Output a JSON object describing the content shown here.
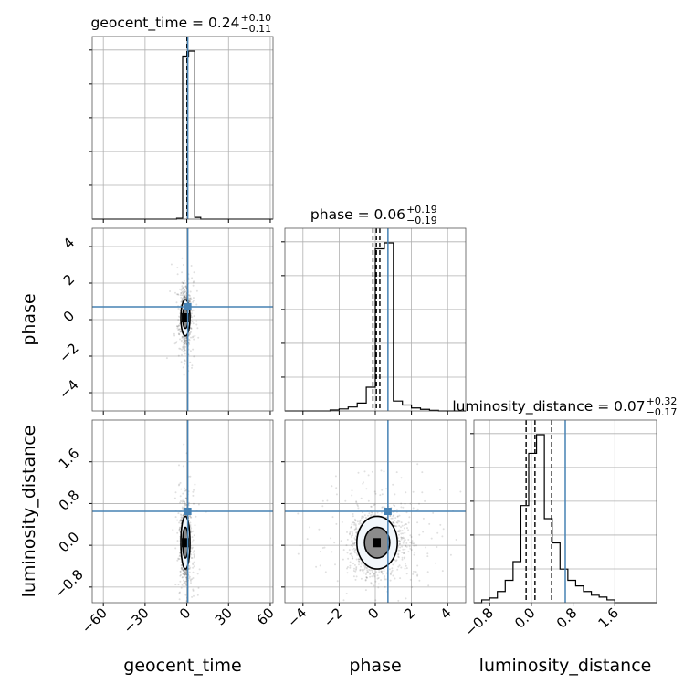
{
  "chart_data": {
    "type": "corner",
    "parameters": [
      {
        "name": "geocent_time",
        "label": "geocent_time",
        "xlim": [
          -68,
          62
        ],
        "ticks": [
          -60,
          -30,
          0,
          30,
          60
        ],
        "tick_labels": [
          "−60",
          "−30",
          "0",
          "30",
          "60"
        ],
        "truth": 0.7
      },
      {
        "name": "phase",
        "label": "phase",
        "xlim": [
          -5,
          5
        ],
        "ticks": [
          -4,
          -2,
          0,
          2,
          4
        ],
        "tick_labels": [
          "−4",
          "−2",
          "0",
          "2",
          "4"
        ],
        "truth": 0.7
      },
      {
        "name": "luminosity_distance",
        "label": "luminosity_distance",
        "xlim": [
          -1.1,
          2.4
        ],
        "ticks": [
          -0.8,
          0.0,
          0.8,
          1.6
        ],
        "tick_labels": [
          "−0.8",
          "0.0",
          "0.8",
          "1.6"
        ],
        "truth": 0.65
      }
    ],
    "titles": [
      {
        "param": "geocent_time",
        "text": "geocent_time = 0.24",
        "plus": "+0.10",
        "minus": "−0.11"
      },
      {
        "param": "phase",
        "text": "phase = 0.06",
        "plus": "+0.19",
        "minus": "−0.19"
      },
      {
        "param": "luminosity_distance",
        "text": "luminosity_distance = 0.07",
        "plus": "+0.32",
        "minus": "−0.17"
      }
    ],
    "quantiles": {
      "geocent_time": [
        0.13,
        0.24,
        0.34
      ],
      "phase": [
        -0.13,
        0.06,
        0.25
      ],
      "luminosity_distance": [
        -0.1,
        0.07,
        0.39
      ]
    },
    "histograms": {
      "geocent_time": {
        "bins": [
          -68,
          -63.7,
          -59.3,
          -55,
          -50.7,
          -46.3,
          -42,
          -37.7,
          -33.3,
          -29,
          -24.7,
          -20.3,
          -16,
          -11.7,
          -7.3,
          -3,
          1.3,
          5.7,
          10,
          14.3,
          18.7,
          23,
          27.3,
          31.7,
          36,
          40.3,
          44.7,
          49,
          53.3,
          57.7,
          62
        ],
        "counts": [
          0,
          0,
          0,
          0,
          0,
          0,
          0,
          0,
          0,
          0,
          0,
          0,
          0,
          0,
          0.005,
          0.97,
          1.0,
          0.01,
          0,
          0,
          0,
          0,
          0,
          0,
          0,
          0,
          0,
          0,
          0,
          0
        ]
      },
      "phase": {
        "bins": [
          -5,
          -4.5,
          -4,
          -3.5,
          -3,
          -2.5,
          -2,
          -1.5,
          -1,
          -0.5,
          0,
          0.5,
          1,
          1.5,
          2,
          2.5,
          3,
          3.5,
          4,
          4.5,
          5
        ],
        "counts": [
          0,
          0,
          0,
          0,
          0,
          0.005,
          0.01,
          0.02,
          0.04,
          0.12,
          0.82,
          0.85,
          0.05,
          0.03,
          0.015,
          0.008,
          0.003,
          0,
          0,
          0
        ]
      },
      "luminosity_distance": {
        "bins": [
          -1.1,
          -0.95,
          -0.8,
          -0.65,
          -0.5,
          -0.35,
          -0.2,
          -0.05,
          0.1,
          0.25,
          0.4,
          0.55,
          0.7,
          0.85,
          1.0,
          1.15,
          1.3,
          1.45,
          1.6,
          1.75,
          1.9,
          2.05,
          2.2,
          2.4
        ],
        "counts": [
          0,
          0.015,
          0.025,
          0.06,
          0.12,
          0.22,
          0.52,
          0.8,
          0.9,
          0.45,
          0.32,
          0.18,
          0.12,
          0.09,
          0.06,
          0.04,
          0.03,
          0.015,
          0.0,
          0,
          0,
          0,
          0
        ]
      }
    },
    "pairs": [
      {
        "x": "geocent_time",
        "y": "phase",
        "truth": [
          0.7,
          0.7
        ],
        "center": [
          -1,
          0.1
        ],
        "spread": [
          1.5,
          0.55
        ]
      },
      {
        "x": "geocent_time",
        "y": "luminosity_distance",
        "truth": [
          0.7,
          0.65
        ],
        "center": [
          -1,
          0.05
        ],
        "spread": [
          1.5,
          0.28
        ]
      },
      {
        "x": "phase",
        "y": "luminosity_distance",
        "truth": [
          0.7,
          0.65
        ],
        "center": [
          0.1,
          0.05
        ],
        "spread": [
          0.7,
          0.28
        ]
      }
    ],
    "axis_labels": {
      "x": [
        "geocent_time",
        "phase",
        "luminosity_distance"
      ],
      "y": [
        "phase",
        "luminosity_distance"
      ]
    },
    "grid": true,
    "colors": {
      "truth": "#4682b4",
      "hist": "#000000",
      "grid": "#b0b0b0",
      "points": "#000000"
    }
  }
}
